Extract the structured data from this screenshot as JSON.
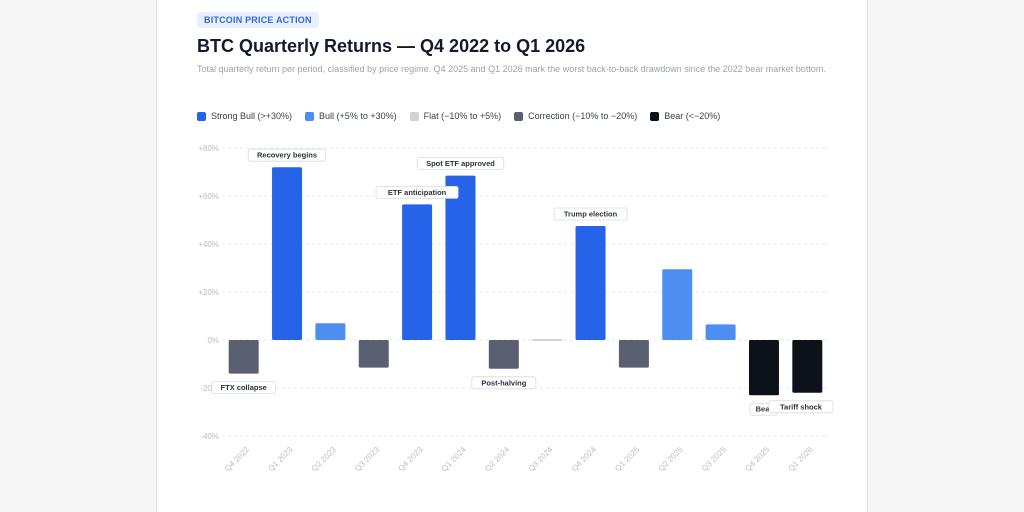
{
  "badge": "BITCOIN PRICE ACTION",
  "colors": {
    "strong_bull": "#2563e8",
    "bull": "#4d8ef0",
    "flat": "#cfd2d8",
    "correction": "#5a6070",
    "bear": "#0d1218",
    "grid": "#e4e6ea",
    "axis_text": "#b7bcc5"
  },
  "chart_data": {
    "type": "bar",
    "title": "BTC Quarterly Returns — Q4 2022 to Q1 2026",
    "subtitle": "Total quarterly return per period, classified by price regime. Q4 2025 and Q1 2026 mark the worst back-to-back drawdown since the 2022 bear market bottom.",
    "xlabel": "",
    "ylabel": "",
    "ylim": [
      -40,
      80
    ],
    "yticks": [
      80,
      60,
      40,
      20,
      0,
      -20,
      -40
    ],
    "ytick_labels": [
      "+80%",
      "+60%",
      "+40%",
      "+20%",
      "0%",
      "-20%",
      "-40%"
    ],
    "grid": true,
    "legend_position": "top",
    "legend": [
      {
        "label": "Strong Bull (>+30%)",
        "regime": "strong_bull"
      },
      {
        "label": "Bull (+5% to +30%)",
        "regime": "bull"
      },
      {
        "label": "Flat (−10% to +5%)",
        "regime": "flat"
      },
      {
        "label": "Correction (−10% to −20%)",
        "regime": "correction"
      },
      {
        "label": "Bear (<−20%)",
        "regime": "bear"
      }
    ],
    "categories": [
      "Q4 2022",
      "Q1 2023",
      "Q2 2023",
      "Q3 2023",
      "Q4 2023",
      "Q1 2024",
      "Q2 2024",
      "Q3 2024",
      "Q4 2024",
      "Q1 2025",
      "Q2 2025",
      "Q3 2025",
      "Q4 2025",
      "Q1 2026"
    ],
    "values": [
      -14,
      72,
      7,
      -11.5,
      56.5,
      68.5,
      -12,
      0.5,
      47.5,
      -11.5,
      29.5,
      6.5,
      -23,
      -22
    ],
    "regimes": [
      "correction",
      "strong_bull",
      "bull",
      "correction",
      "strong_bull",
      "strong_bull",
      "correction",
      "flat",
      "strong_bull",
      "correction",
      "bull",
      "bull",
      "bear",
      "bear"
    ],
    "annotations": [
      {
        "category": "Q4 2022",
        "text": "FTX collapse"
      },
      {
        "category": "Q1 2023",
        "text": "Recovery begins"
      },
      {
        "category": "Q4 2023",
        "text": "ETF anticipation"
      },
      {
        "category": "Q1 2024",
        "text": "Spot ETF approved"
      },
      {
        "category": "Q2 2024",
        "text": "Post-halving"
      },
      {
        "category": "Q4 2024",
        "text": "Trump election"
      },
      {
        "category": "Q4 2025",
        "text": "Bear"
      },
      {
        "category": "Q1 2026",
        "text": "Tariff shock"
      }
    ]
  }
}
